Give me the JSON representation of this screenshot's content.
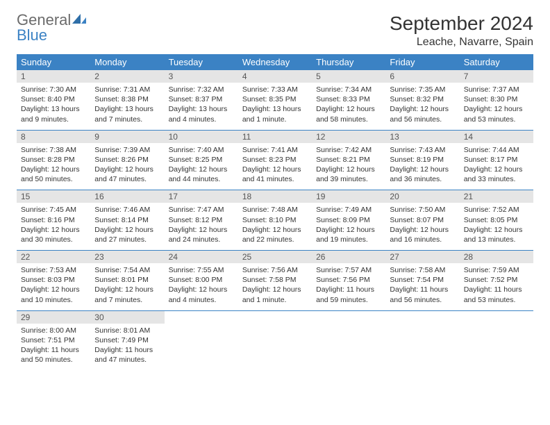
{
  "brand": {
    "general": "General",
    "blue": "Blue"
  },
  "title": "September 2024",
  "location": "Leache, Navarre, Spain",
  "colors": {
    "header_bg": "#3b82c4",
    "header_text": "#ffffff",
    "daynum_bg": "#e5e5e5",
    "daynum_text": "#555555",
    "body_text": "#333333",
    "rule": "#3b82c4",
    "logo_gray": "#6b6b6b",
    "logo_blue": "#3b82c4"
  },
  "weekdays": [
    "Sunday",
    "Monday",
    "Tuesday",
    "Wednesday",
    "Thursday",
    "Friday",
    "Saturday"
  ],
  "weeks": [
    [
      {
        "n": "1",
        "sr": "Sunrise: 7:30 AM",
        "ss": "Sunset: 8:40 PM",
        "dl": "Daylight: 13 hours and 9 minutes."
      },
      {
        "n": "2",
        "sr": "Sunrise: 7:31 AM",
        "ss": "Sunset: 8:38 PM",
        "dl": "Daylight: 13 hours and 7 minutes."
      },
      {
        "n": "3",
        "sr": "Sunrise: 7:32 AM",
        "ss": "Sunset: 8:37 PM",
        "dl": "Daylight: 13 hours and 4 minutes."
      },
      {
        "n": "4",
        "sr": "Sunrise: 7:33 AM",
        "ss": "Sunset: 8:35 PM",
        "dl": "Daylight: 13 hours and 1 minute."
      },
      {
        "n": "5",
        "sr": "Sunrise: 7:34 AM",
        "ss": "Sunset: 8:33 PM",
        "dl": "Daylight: 12 hours and 58 minutes."
      },
      {
        "n": "6",
        "sr": "Sunrise: 7:35 AM",
        "ss": "Sunset: 8:32 PM",
        "dl": "Daylight: 12 hours and 56 minutes."
      },
      {
        "n": "7",
        "sr": "Sunrise: 7:37 AM",
        "ss": "Sunset: 8:30 PM",
        "dl": "Daylight: 12 hours and 53 minutes."
      }
    ],
    [
      {
        "n": "8",
        "sr": "Sunrise: 7:38 AM",
        "ss": "Sunset: 8:28 PM",
        "dl": "Daylight: 12 hours and 50 minutes."
      },
      {
        "n": "9",
        "sr": "Sunrise: 7:39 AM",
        "ss": "Sunset: 8:26 PM",
        "dl": "Daylight: 12 hours and 47 minutes."
      },
      {
        "n": "10",
        "sr": "Sunrise: 7:40 AM",
        "ss": "Sunset: 8:25 PM",
        "dl": "Daylight: 12 hours and 44 minutes."
      },
      {
        "n": "11",
        "sr": "Sunrise: 7:41 AM",
        "ss": "Sunset: 8:23 PM",
        "dl": "Daylight: 12 hours and 41 minutes."
      },
      {
        "n": "12",
        "sr": "Sunrise: 7:42 AM",
        "ss": "Sunset: 8:21 PM",
        "dl": "Daylight: 12 hours and 39 minutes."
      },
      {
        "n": "13",
        "sr": "Sunrise: 7:43 AM",
        "ss": "Sunset: 8:19 PM",
        "dl": "Daylight: 12 hours and 36 minutes."
      },
      {
        "n": "14",
        "sr": "Sunrise: 7:44 AM",
        "ss": "Sunset: 8:17 PM",
        "dl": "Daylight: 12 hours and 33 minutes."
      }
    ],
    [
      {
        "n": "15",
        "sr": "Sunrise: 7:45 AM",
        "ss": "Sunset: 8:16 PM",
        "dl": "Daylight: 12 hours and 30 minutes."
      },
      {
        "n": "16",
        "sr": "Sunrise: 7:46 AM",
        "ss": "Sunset: 8:14 PM",
        "dl": "Daylight: 12 hours and 27 minutes."
      },
      {
        "n": "17",
        "sr": "Sunrise: 7:47 AM",
        "ss": "Sunset: 8:12 PM",
        "dl": "Daylight: 12 hours and 24 minutes."
      },
      {
        "n": "18",
        "sr": "Sunrise: 7:48 AM",
        "ss": "Sunset: 8:10 PM",
        "dl": "Daylight: 12 hours and 22 minutes."
      },
      {
        "n": "19",
        "sr": "Sunrise: 7:49 AM",
        "ss": "Sunset: 8:09 PM",
        "dl": "Daylight: 12 hours and 19 minutes."
      },
      {
        "n": "20",
        "sr": "Sunrise: 7:50 AM",
        "ss": "Sunset: 8:07 PM",
        "dl": "Daylight: 12 hours and 16 minutes."
      },
      {
        "n": "21",
        "sr": "Sunrise: 7:52 AM",
        "ss": "Sunset: 8:05 PM",
        "dl": "Daylight: 12 hours and 13 minutes."
      }
    ],
    [
      {
        "n": "22",
        "sr": "Sunrise: 7:53 AM",
        "ss": "Sunset: 8:03 PM",
        "dl": "Daylight: 12 hours and 10 minutes."
      },
      {
        "n": "23",
        "sr": "Sunrise: 7:54 AM",
        "ss": "Sunset: 8:01 PM",
        "dl": "Daylight: 12 hours and 7 minutes."
      },
      {
        "n": "24",
        "sr": "Sunrise: 7:55 AM",
        "ss": "Sunset: 8:00 PM",
        "dl": "Daylight: 12 hours and 4 minutes."
      },
      {
        "n": "25",
        "sr": "Sunrise: 7:56 AM",
        "ss": "Sunset: 7:58 PM",
        "dl": "Daylight: 12 hours and 1 minute."
      },
      {
        "n": "26",
        "sr": "Sunrise: 7:57 AM",
        "ss": "Sunset: 7:56 PM",
        "dl": "Daylight: 11 hours and 59 minutes."
      },
      {
        "n": "27",
        "sr": "Sunrise: 7:58 AM",
        "ss": "Sunset: 7:54 PM",
        "dl": "Daylight: 11 hours and 56 minutes."
      },
      {
        "n": "28",
        "sr": "Sunrise: 7:59 AM",
        "ss": "Sunset: 7:52 PM",
        "dl": "Daylight: 11 hours and 53 minutes."
      }
    ],
    [
      {
        "n": "29",
        "sr": "Sunrise: 8:00 AM",
        "ss": "Sunset: 7:51 PM",
        "dl": "Daylight: 11 hours and 50 minutes."
      },
      {
        "n": "30",
        "sr": "Sunrise: 8:01 AM",
        "ss": "Sunset: 7:49 PM",
        "dl": "Daylight: 11 hours and 47 minutes."
      },
      null,
      null,
      null,
      null,
      null
    ]
  ]
}
